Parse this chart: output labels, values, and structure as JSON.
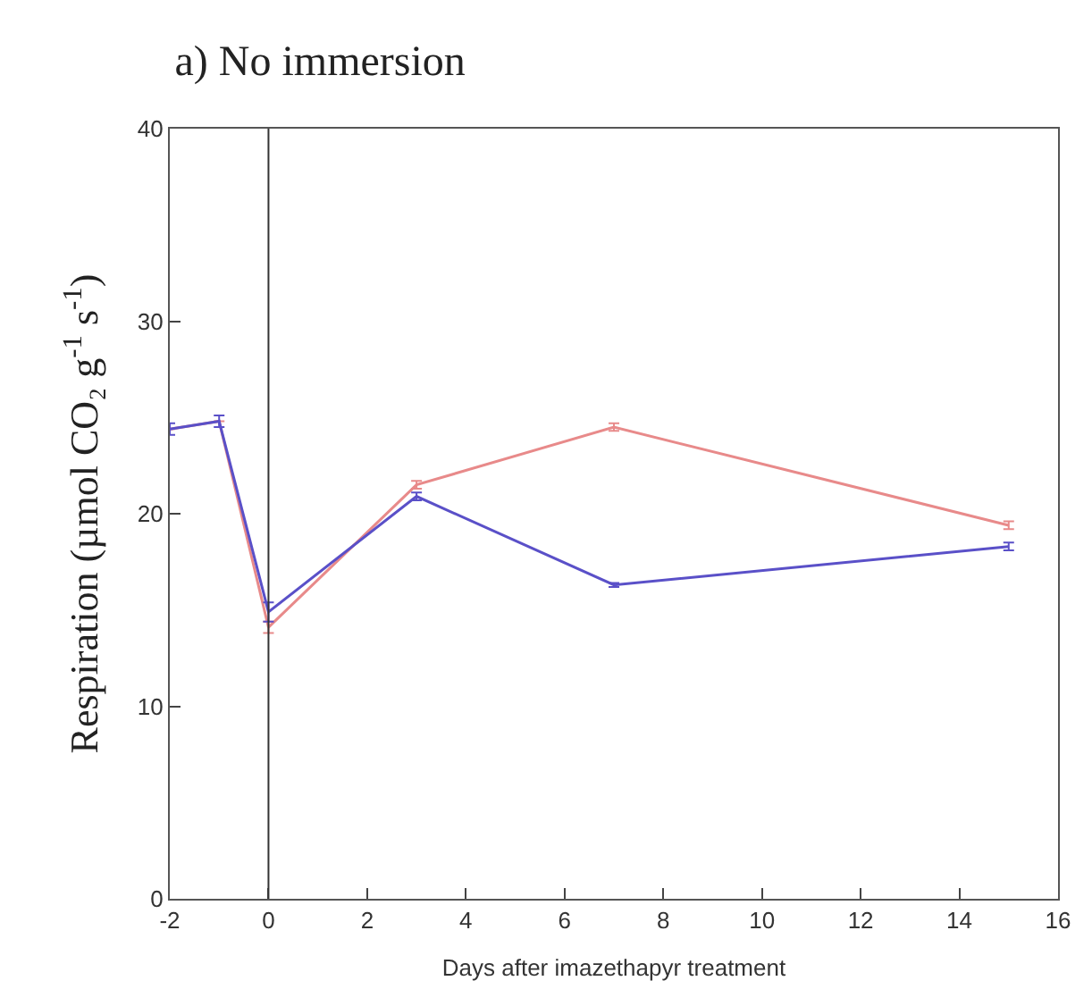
{
  "chart_data": {
    "type": "line",
    "title": "a) No immersion",
    "xlabel": "Days after imazethapyr treatment",
    "ylabel": "Respiration (µmol CO₂ g$^{-1}$ s$^{-1}$)",
    "x": [
      -2,
      -1,
      0,
      3,
      7,
      15
    ],
    "series": [
      {
        "color": "#e88a8a",
        "values": [
          24.4,
          24.8,
          14.1,
          21.5,
          24.5,
          19.4
        ],
        "errors": [
          null,
          null,
          0.3,
          0.2,
          0.2,
          0.2
        ]
      },
      {
        "color": "#5a50c8",
        "values": [
          24.4,
          24.8,
          14.9,
          20.9,
          16.3,
          18.3
        ],
        "errors": [
          0.3,
          0.3,
          0.5,
          0.2,
          0.1,
          0.2
        ]
      }
    ],
    "xlim": [
      -2,
      16
    ],
    "ylim": [
      0,
      40
    ],
    "xticks": [
      -2,
      0,
      2,
      4,
      6,
      8,
      10,
      12,
      14,
      16
    ],
    "yticks": [
      0,
      10,
      20,
      30,
      40
    ],
    "ref_lines": [
      {
        "axis": "x",
        "value": 0,
        "color": "#333333"
      }
    ],
    "line_style": "solid"
  }
}
